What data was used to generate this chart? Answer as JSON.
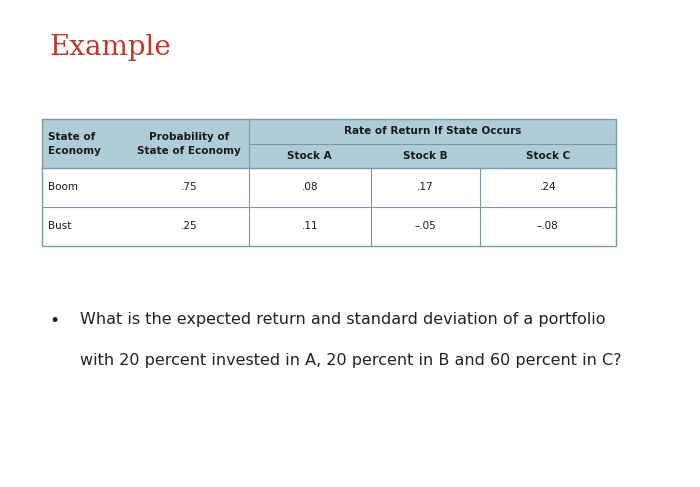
{
  "title": "Example",
  "title_color": "#c0392b",
  "title_fontsize": 20,
  "bg_color": "#ffffff",
  "table_header_bg": "#aecdd6",
  "table_border_color": "#7a9aa0",
  "data_rows": [
    [
      "Boom",
      ".75",
      ".08",
      ".17",
      ".24"
    ],
    [
      "Bust",
      ".25",
      ".11",
      "–.05",
      "–.08"
    ]
  ],
  "bullet_line1": "What is the expected return and standard deviation of a portfolio",
  "bullet_line2": "with 20 percent invested in A, 20 percent in B and 60 percent in C?",
  "bullet_fontsize": 11.5,
  "bullet_color": "#222222"
}
